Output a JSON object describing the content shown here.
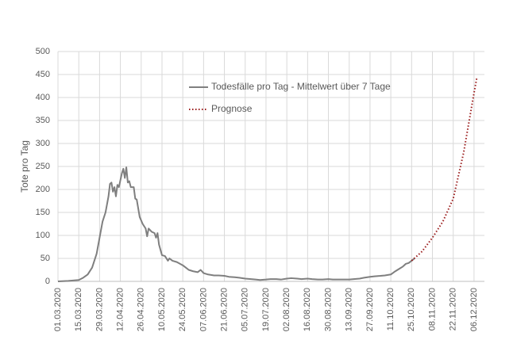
{
  "chart_data": {
    "type": "line",
    "y_label": "Tote pro Tag",
    "ylim": [
      0,
      500
    ],
    "yticks": [
      0,
      50,
      100,
      150,
      200,
      250,
      300,
      350,
      400,
      450,
      500
    ],
    "xlim": [
      "01.03.2020",
      "13.12.2020"
    ],
    "xticks": [
      "01.03.2020",
      "15.03.2020",
      "29.03.2020",
      "12.04.2020",
      "26.04.2020",
      "10.05.2020",
      "24.05.2020",
      "07.06.2020",
      "21.06.2020",
      "05.07.2020",
      "19.07.2020",
      "02.08.2020",
      "16.08.2020",
      "30.08.2020",
      "13.09.2020",
      "27.09.2020",
      "11.10.2020",
      "25.10.2020",
      "08.11.2020",
      "22.11.2020",
      "06.12.2020"
    ],
    "grid": true,
    "legend": "top",
    "series": [
      {
        "name": "Todesfälle pro Tag - Mittelwert über 7 Tage",
        "color": "#7f7f7f",
        "style": "solid",
        "x": [
          "01.03.2020",
          "08.03.2020",
          "15.03.2020",
          "18.03.2020",
          "21.03.2020",
          "24.03.2020",
          "27.03.2020",
          "29.03.2020",
          "31.03.2020",
          "02.04.2020",
          "04.04.2020",
          "05.04.2020",
          "06.04.2020",
          "07.04.2020",
          "08.04.2020",
          "09.04.2020",
          "10.04.2020",
          "11.04.2020",
          "13.04.2020",
          "14.04.2020",
          "15.04.2020",
          "16.04.2020",
          "17.04.2020",
          "18.04.2020",
          "19.04.2020",
          "21.04.2020",
          "22.04.2020",
          "23.04.2020",
          "25.04.2020",
          "27.04.2020",
          "29.04.2020",
          "30.04.2020",
          "01.05.2020",
          "03.05.2020",
          "05.05.2020",
          "06.05.2020",
          "07.05.2020",
          "08.05.2020",
          "10.05.2020",
          "12.05.2020",
          "14.05.2020",
          "15.05.2020",
          "17.05.2020",
          "20.05.2020",
          "24.05.2020",
          "26.05.2020",
          "28.05.2020",
          "31.05.2020",
          "03.06.2020",
          "05.06.2020",
          "07.06.2020",
          "10.06.2020",
          "14.06.2020",
          "17.06.2020",
          "21.06.2020",
          "24.06.2020",
          "28.06.2020",
          "01.07.2020",
          "05.07.2020",
          "09.07.2020",
          "12.07.2020",
          "15.07.2020",
          "19.07.2020",
          "22.07.2020",
          "26.07.2020",
          "29.07.2020",
          "02.08.2020",
          "05.08.2020",
          "09.08.2020",
          "12.08.2020",
          "16.08.2020",
          "19.08.2020",
          "23.08.2020",
          "26.08.2020",
          "30.08.2020",
          "02.09.2020",
          "06.09.2020",
          "09.09.2020",
          "13.09.2020",
          "16.09.2020",
          "20.09.2020",
          "23.09.2020",
          "27.09.2020",
          "30.09.2020",
          "04.10.2020",
          "07.10.2020",
          "11.10.2020",
          "14.10.2020",
          "17.10.2020",
          "19.10.2020",
          "21.10.2020",
          "23.10.2020",
          "25.10.2020",
          "27.10.2020"
        ],
        "values": [
          0,
          1,
          3,
          8,
          15,
          30,
          60,
          95,
          130,
          150,
          185,
          212,
          215,
          195,
          205,
          185,
          210,
          205,
          235,
          245,
          225,
          248,
          215,
          218,
          205,
          205,
          180,
          178,
          140,
          125,
          115,
          98,
          115,
          108,
          105,
          95,
          105,
          80,
          57,
          55,
          45,
          50,
          45,
          42,
          35,
          30,
          25,
          22,
          20,
          25,
          18,
          15,
          13,
          13,
          12,
          10,
          9,
          8,
          6,
          5,
          4,
          3,
          4,
          5,
          5,
          4,
          6,
          7,
          6,
          5,
          6,
          5,
          4,
          4,
          5,
          4,
          4,
          4,
          4,
          5,
          6,
          8,
          10,
          11,
          12,
          13,
          15,
          22,
          28,
          32,
          38,
          40,
          45,
          50
        ]
      },
      {
        "name": "Prognose",
        "color": "#9b1c1c",
        "style": "dotted",
        "x": [
          "25.10.2020",
          "01.11.2020",
          "08.11.2020",
          "15.11.2020",
          "22.11.2020",
          "29.11.2020",
          "06.12.2020",
          "08.12.2020"
        ],
        "values": [
          45,
          65,
          95,
          130,
          180,
          280,
          410,
          445
        ]
      }
    ]
  }
}
